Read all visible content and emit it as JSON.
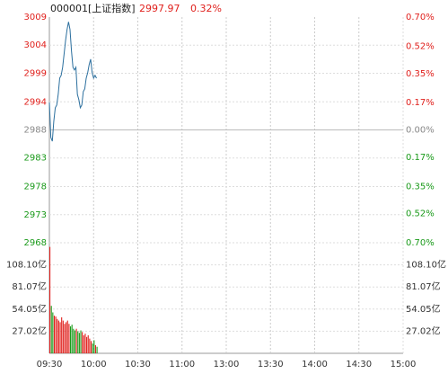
{
  "header": {
    "code": "000001[上证指数]",
    "price": "2997.97",
    "change": "0.32%"
  },
  "chart_data": [
    {
      "type": "line",
      "x": [
        0,
        1,
        2,
        3,
        4,
        5,
        6,
        7,
        8,
        9,
        10,
        11,
        12,
        13,
        14,
        15,
        16,
        17,
        18,
        19,
        20,
        21,
        22,
        23,
        24,
        25,
        26,
        27,
        28,
        29,
        30,
        31,
        32
      ],
      "series": [
        {
          "color": "#2b6f9e",
          "values": [
            2993.5,
            2987,
            2986.3,
            2990,
            2992.5,
            2993,
            2995,
            2998,
            2998.5,
            3000,
            3002.5,
            3005,
            3007,
            3008.4,
            3007,
            3003,
            3000,
            2999.5,
            3000,
            2995,
            2994,
            2992.5,
            2993,
            2995.5,
            2996,
            2998,
            2999,
            3000.5,
            3001.5,
            2999,
            2998,
            2998.5,
            2997.97
          ]
        }
      ],
      "xlim": [
        0,
        240
      ],
      "xticks": [
        {
          "value": 0,
          "label": "09:30"
        },
        {
          "value": 30,
          "label": "10:00"
        },
        {
          "value": 60,
          "label": "10:30"
        },
        {
          "value": 90,
          "label": "11:00"
        },
        {
          "value": 120,
          "label": "13:00"
        },
        {
          "value": 150,
          "label": "13:30"
        },
        {
          "value": 180,
          "label": "14:00"
        },
        {
          "value": 210,
          "label": "14:30"
        },
        {
          "value": 240,
          "label": "15:00"
        }
      ],
      "ylim": [
        2967.5,
        3009.3
      ],
      "yticks": [
        {
          "value": 3009.3,
          "label": "3009"
        },
        {
          "value": 3004.1,
          "label": "3004"
        },
        {
          "value": 2998.9,
          "label": "2999"
        },
        {
          "value": 2993.6,
          "label": "2994"
        },
        {
          "value": 2988.4,
          "label": "2988"
        },
        {
          "value": 2983.2,
          "label": "2983"
        },
        {
          "value": 2977.9,
          "label": "2978"
        },
        {
          "value": 2972.7,
          "label": "2973"
        },
        {
          "value": 2967.5,
          "label": "2968"
        }
      ],
      "y2lim": [
        -0.7,
        0.7
      ],
      "y2ticks": [
        {
          "value": 0.7,
          "label": "0.70%"
        },
        {
          "value": 0.52,
          "label": "0.52%"
        },
        {
          "value": 0.35,
          "label": "0.35%"
        },
        {
          "value": 0.17,
          "label": "0.17%"
        },
        {
          "value": 0,
          "label": "0.00%"
        },
        {
          "value": -0.17,
          "label": "0.17%"
        },
        {
          "value": -0.35,
          "label": "0.35%"
        },
        {
          "value": -0.52,
          "label": "0.52%"
        },
        {
          "value": -0.7,
          "label": "0.70%"
        }
      ],
      "up_color": "#e0201c",
      "down_color": "#1a9a1a",
      "flat_color": "#888888",
      "grid": true
    },
    {
      "type": "bar",
      "x": [
        0,
        1,
        2,
        3,
        4,
        5,
        6,
        7,
        8,
        9,
        10,
        11,
        12,
        13,
        14,
        15,
        16,
        17,
        18,
        19,
        20,
        21,
        22,
        23,
        24,
        25,
        26,
        27,
        28,
        29,
        30,
        31,
        32
      ],
      "values": [
        130,
        58,
        50,
        46,
        45,
        42,
        40,
        38,
        44,
        40,
        36,
        38,
        40,
        36,
        33,
        35,
        30,
        28,
        30,
        27,
        25,
        28,
        26,
        22,
        24,
        20,
        22,
        18,
        15,
        12,
        16,
        10,
        8
      ],
      "ylim": [
        0,
        135.12
      ],
      "yticks": [
        {
          "value": 108.1,
          "label": "108.10亿"
        },
        {
          "value": 81.07,
          "label": "81.07亿"
        },
        {
          "value": 54.05,
          "label": "54.05亿"
        },
        {
          "value": 27.02,
          "label": "27.02亿"
        }
      ],
      "up_color": "#e0201c",
      "down_color": "#1a9a1a",
      "grid": true
    }
  ]
}
